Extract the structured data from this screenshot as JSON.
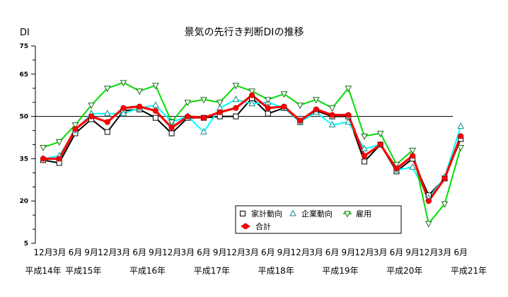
{
  "chart_data": {
    "type": "line",
    "title": "景気の先行き判断DIの推移",
    "ylabel": "DI",
    "xlabel": "",
    "ylim": [
      5,
      75
    ],
    "yticks": [
      5,
      20,
      35,
      50,
      65,
      75
    ],
    "reference_line": 50,
    "grid": false,
    "legend_placement": "bottom-right",
    "categories": [
      "12月",
      "3月",
      "6月",
      "9月",
      "12月",
      "3月",
      "6月",
      "9月",
      "12月",
      "3月",
      "6月",
      "9月",
      "12月",
      "3月",
      "6月",
      "9月",
      "12月",
      "3月",
      "6月",
      "9月",
      "12月",
      "3月",
      "6月",
      "9月",
      "12月",
      "3月",
      "6月"
    ],
    "year_labels": [
      {
        "label": "平成14年",
        "at": 0
      },
      {
        "label": "平成15年",
        "at": 2.5
      },
      {
        "label": "平成16年",
        "at": 6.5
      },
      {
        "label": "平成17年",
        "at": 10.5
      },
      {
        "label": "平成18年",
        "at": 14.5
      },
      {
        "label": "平成19年",
        "at": 18.5
      },
      {
        "label": "平成20年",
        "at": 22.5
      },
      {
        "label": "平成21年",
        "at": 26.5
      }
    ],
    "series": [
      {
        "name": "家計動向",
        "marker": "square",
        "color": "#000000",
        "values": [
          34.5,
          33.5,
          44,
          49,
          44.5,
          52,
          52.5,
          49.5,
          44,
          49.5,
          49.5,
          50,
          50,
          56.5,
          51,
          53,
          48,
          52,
          50,
          50,
          34,
          40,
          30.5,
          35,
          22,
          28,
          42
        ]
      },
      {
        "name": "企業動向",
        "marker": "triangle-up",
        "color": "#00ffff",
        "values": [
          35,
          36,
          45,
          51,
          51,
          51,
          53,
          54,
          48,
          50,
          44.5,
          53,
          56,
          54.5,
          55,
          53,
          48,
          51.5,
          47,
          48,
          38.5,
          40,
          31,
          32,
          21,
          28.5,
          46.5
        ]
      },
      {
        "name": "雇用",
        "marker": "triangle-down",
        "color": "#00dd00",
        "values": [
          39,
          41,
          47,
          54,
          60,
          62,
          59,
          61,
          48,
          55,
          56,
          55,
          61,
          59,
          56,
          58,
          54,
          56,
          53,
          60,
          43,
          44,
          33,
          38,
          12,
          19,
          39
        ]
      },
      {
        "name": "合計",
        "marker": "diamond",
        "color": "#ff0000",
        "values": [
          35,
          35,
          45.5,
          50,
          48,
          53,
          53.5,
          52,
          46,
          50,
          49.5,
          51.5,
          53,
          57.5,
          53,
          53.5,
          48.5,
          52.5,
          50.5,
          50.5,
          36,
          40,
          31.5,
          36,
          20,
          28,
          43
        ]
      }
    ]
  }
}
